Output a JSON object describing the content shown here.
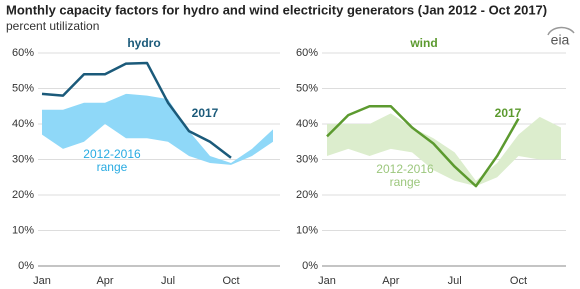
{
  "title": "Monthly capacity factors for hydro and wind electricity generators (Jan 2012 - Oct 2017)",
  "subtitle": "percent utilization",
  "source": "eia",
  "chart_data": [
    {
      "type": "line",
      "title": "hydro",
      "categories": [
        "Jan",
        null,
        null,
        "Apr",
        null,
        null,
        "Jul",
        null,
        null,
        "Oct",
        null,
        null
      ],
      "series": [
        {
          "name": "2017",
          "color": "#1b5a7a",
          "values": [
            48.5,
            48,
            54,
            54,
            57,
            57.2,
            46,
            38,
            35,
            30.5,
            null,
            null
          ]
        }
      ],
      "range": {
        "name": "2012-2016 range",
        "color": "#8fd8f8",
        "text_color": "#29abe2",
        "low": [
          37,
          33,
          35,
          40,
          36,
          36,
          35,
          31,
          29,
          28.5,
          31,
          35
        ],
        "high": [
          44,
          44,
          46,
          46,
          48.5,
          48,
          47,
          38,
          31,
          29,
          33,
          38.5
        ]
      },
      "ylim": [
        0,
        60
      ],
      "yticks": [
        {
          "value": 0,
          "label": "0%"
        },
        {
          "value": 10,
          "label": "10%"
        },
        {
          "value": 20,
          "label": "20%"
        },
        {
          "value": 30,
          "label": "30%"
        },
        {
          "value": 40,
          "label": "40%"
        },
        {
          "value": 50,
          "label": "50%"
        },
        {
          "value": 60,
          "label": "60%"
        }
      ],
      "grid": true
    },
    {
      "type": "line",
      "title": "wind",
      "categories": [
        "Jan",
        null,
        null,
        "Apr",
        null,
        null,
        "Jul",
        null,
        null,
        "Oct",
        null,
        null
      ],
      "series": [
        {
          "name": "2017",
          "color": "#5c9a2f",
          "values": [
            36.5,
            42.5,
            45,
            45,
            39,
            34.5,
            28,
            22.5,
            31,
            41.5,
            null,
            null
          ]
        }
      ],
      "range": {
        "name": "2012-2016 range",
        "color": "#dcedcd",
        "text_color": "#9cc77d",
        "low": [
          31,
          33,
          31,
          33,
          32,
          27,
          24,
          22.5,
          25,
          31,
          30,
          30
        ],
        "high": [
          40,
          40,
          40,
          43,
          39,
          36,
          32,
          24,
          29,
          37,
          42,
          39
        ]
      },
      "ylim": [
        0,
        60
      ],
      "yticks": [
        {
          "value": 0,
          "label": "0%"
        },
        {
          "value": 10,
          "label": "10%"
        },
        {
          "value": 20,
          "label": "20%"
        },
        {
          "value": 30,
          "label": "30%"
        },
        {
          "value": 40,
          "label": "40%"
        },
        {
          "value": 50,
          "label": "50%"
        },
        {
          "value": 60,
          "label": "60%"
        }
      ],
      "grid": true
    }
  ]
}
